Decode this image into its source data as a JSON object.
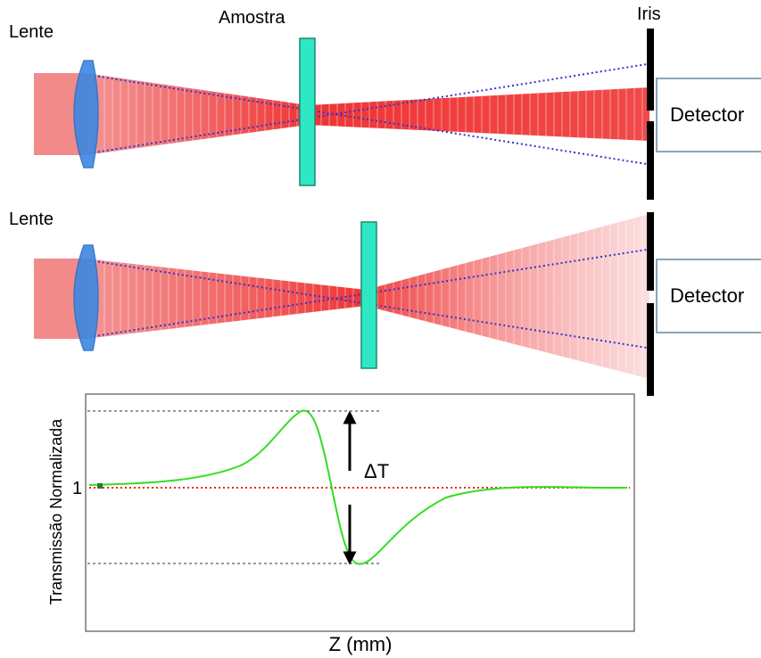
{
  "labels": {
    "lens_top": "Lente",
    "lens_bottom": "Lente",
    "sample": "Amostra",
    "iris": "Iris",
    "detector_top": "Detector",
    "detector_bottom": "Detector"
  },
  "plot": {
    "ylabel": "Transmissão Normalizada",
    "xlabel": "Z (mm)",
    "y_tick": "1",
    "delta_label": "ΔT"
  },
  "colors": {
    "beam": "#ee2222",
    "lens": "#3d87e0",
    "sample": "#2ee8c4",
    "curve": "#33dd22",
    "baseline": "#ee2222",
    "guide": "#3333cc"
  }
}
